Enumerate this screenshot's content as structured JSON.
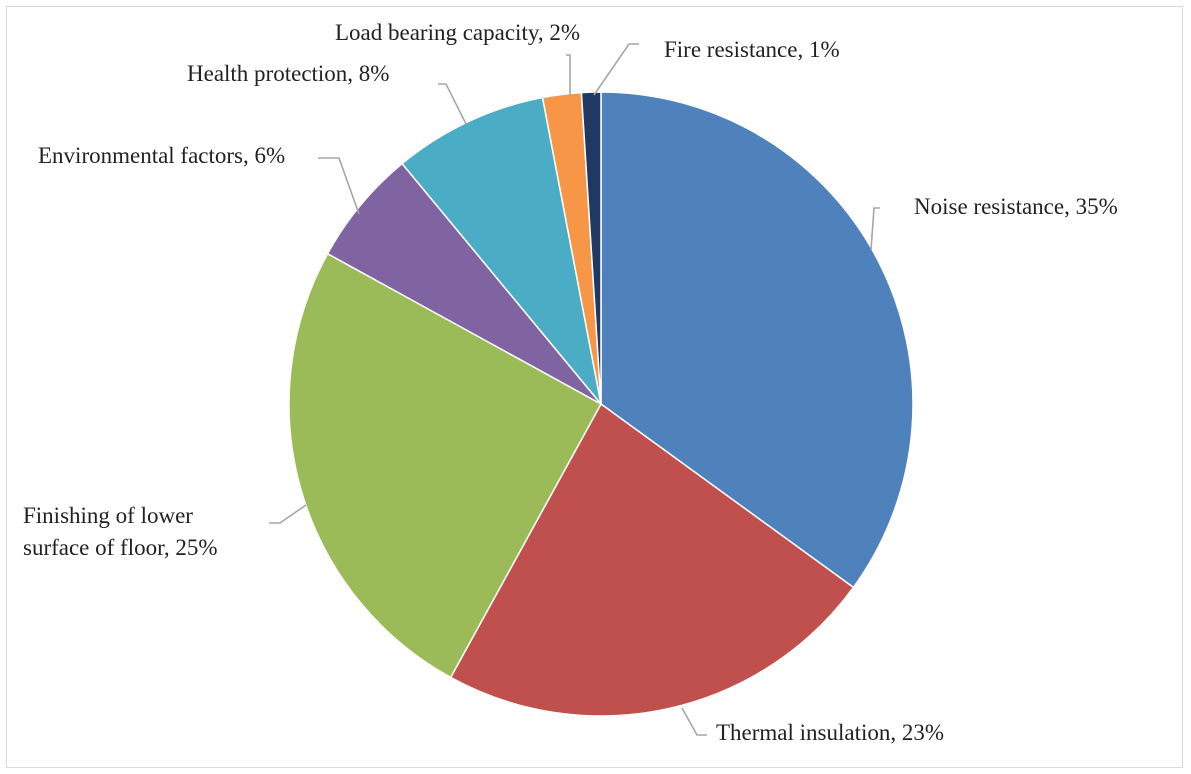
{
  "chart_data": {
    "type": "pie",
    "title": "",
    "slices": [
      {
        "category": "Noise resistance",
        "value": 35,
        "label_lines": [
          "Noise resistance, 35%"
        ],
        "color": "#4F81BD"
      },
      {
        "category": "Thermal insulation",
        "value": 23,
        "label_lines": [
          "Thermal insulation, 23%"
        ],
        "color": "#C0504D"
      },
      {
        "category": "Finishing of lower surface of floor",
        "value": 25,
        "label_lines": [
          "Finishing of lower",
          "surface of floor, 25%"
        ],
        "color": "#9BBB59"
      },
      {
        "category": "Environmental factors",
        "value": 6,
        "label_lines": [
          "Environmental factors, 6%"
        ],
        "color": "#8064A2"
      },
      {
        "category": "Health protection",
        "value": 8,
        "label_lines": [
          "Health protection, 8%"
        ],
        "color": "#4BACC6"
      },
      {
        "category": "Load bearing capacity",
        "value": 2,
        "label_lines": [
          "Load bearing capacity, 2%"
        ],
        "color": "#F79646"
      },
      {
        "category": "Fire resistance",
        "value": 1,
        "label_lines": [
          "Fire resistance, 1%"
        ],
        "color": "#1F3864"
      }
    ],
    "start_angle": "12 o'clock",
    "direction": "clockwise",
    "legend": "none",
    "data_labels": "outside with leader lines"
  }
}
